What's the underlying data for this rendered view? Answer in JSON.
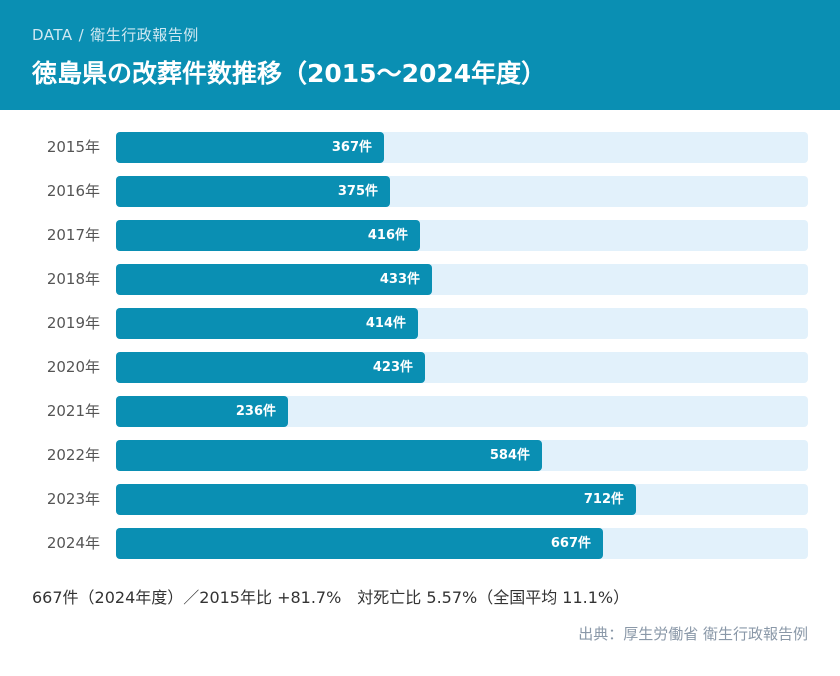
{
  "header": {
    "crumb_data": "DATA",
    "crumb_sep": "/",
    "crumb_section": "衛生行政報告例",
    "title": "徳島県の改葬件数推移（2015〜2024年度）"
  },
  "colors": {
    "header_bg": "#0a8fb3",
    "bar": "#0a8fb3",
    "track": "#e2f1fb"
  },
  "chart_data": {
    "type": "bar",
    "orientation": "horizontal",
    "categories": [
      "2015年",
      "2016年",
      "2017年",
      "2018年",
      "2019年",
      "2020年",
      "2021年",
      "2022年",
      "2023年",
      "2024年"
    ],
    "values": [
      367,
      375,
      416,
      433,
      414,
      423,
      236,
      584,
      712,
      667
    ],
    "value_labels": [
      "367件",
      "375件",
      "416件",
      "433件",
      "414件",
      "423件",
      "236件",
      "584件",
      "712件",
      "667件"
    ],
    "xlim": [
      0,
      948
    ],
    "grid": false,
    "legend": "none"
  },
  "summary": "667件（2024年度）／2015年比 +81.7%　対死亡比 5.57%（全国平均 11.1%）",
  "source": "出典：厚生労働省 衛生行政報告例"
}
